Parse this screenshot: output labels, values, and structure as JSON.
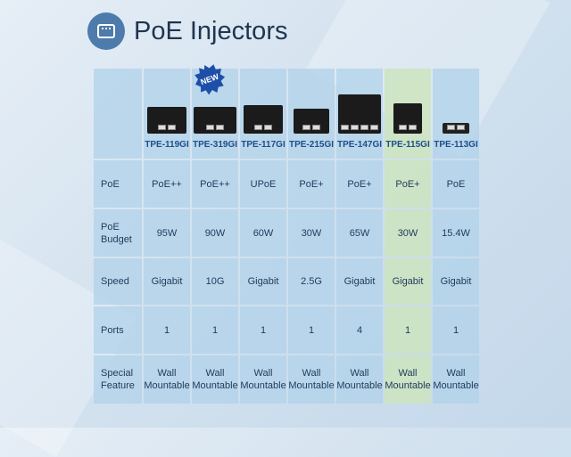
{
  "title": "PoE Injectors",
  "badge": "NEW",
  "colors": {
    "highlight": "#cde4be",
    "cell": "#b0d2ea",
    "logo": "#4d7bab",
    "model_text": "#1d4f8a"
  },
  "row_labels": [
    "PoE",
    "PoE Budget",
    "Speed",
    "Ports",
    "Special Feature"
  ],
  "products": [
    {
      "model": "TPE-119GI",
      "poe": "PoE++",
      "budget": "95W",
      "speed": "Gigabit",
      "ports": "1",
      "feature": "Wall Mountable"
    },
    {
      "model": "TPE-319GI",
      "poe": "PoE++",
      "budget": "90W",
      "speed": "10G",
      "ports": "1",
      "feature": "Wall Mountable"
    },
    {
      "model": "TPE-117GI",
      "poe": "UPoE",
      "budget": "60W",
      "speed": "Gigabit",
      "ports": "1",
      "feature": "Wall Mountable"
    },
    {
      "model": "TPE-215GI",
      "poe": "PoE+",
      "budget": "30W",
      "speed": "2.5G",
      "ports": "1",
      "feature": "Wall Mountable"
    },
    {
      "model": "TPE-147GI",
      "poe": "PoE+",
      "budget": "65W",
      "speed": "Gigabit",
      "ports": "4",
      "feature": "Wall Mountable"
    },
    {
      "model": "TPE-115GI",
      "poe": "PoE+",
      "budget": "30W",
      "speed": "Gigabit",
      "ports": "1",
      "feature": "Wall Mountable"
    },
    {
      "model": "TPE-113GI",
      "poe": "PoE",
      "budget": "15.4W",
      "speed": "Gigabit",
      "ports": "1",
      "feature": "Wall Mountable"
    }
  ]
}
